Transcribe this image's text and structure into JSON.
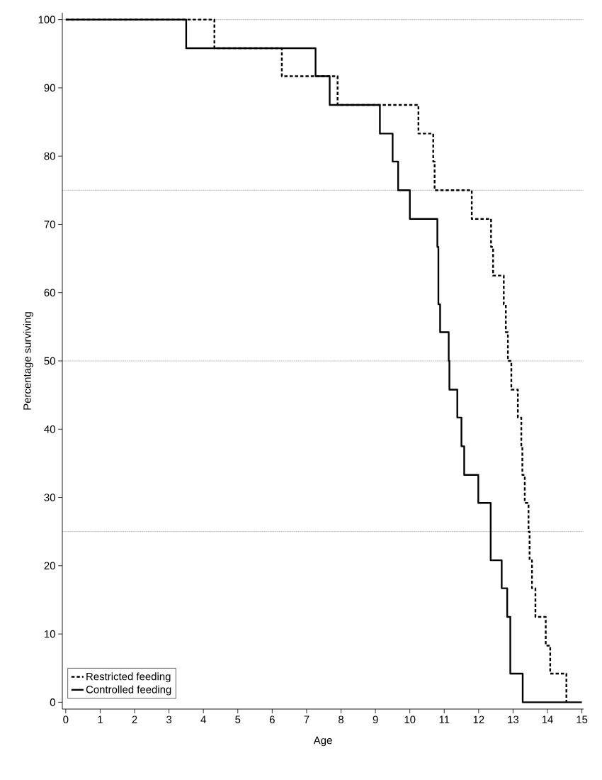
{
  "chart_data": {
    "type": "step",
    "xlabel": "Age",
    "ylabel": "Percentage surviving",
    "xlim": [
      -0.1,
      15.05
    ],
    "ylim": [
      -1,
      101
    ],
    "xticks": [
      0,
      1,
      2,
      3,
      4,
      5,
      6,
      7,
      8,
      9,
      10,
      11,
      12,
      13,
      14,
      15
    ],
    "yticks": [
      0,
      10,
      20,
      30,
      40,
      50,
      60,
      70,
      80,
      90,
      100
    ],
    "legend": "bottom left",
    "ref_lines": [
      {
        "axis": "y",
        "value": 25,
        "color": "#555555",
        "line_style": "dotted"
      },
      {
        "axis": "y",
        "value": 50,
        "color": "#555555",
        "line_style": "dotted"
      },
      {
        "axis": "y",
        "value": 75,
        "color": "#555555",
        "line_style": "dotted"
      },
      {
        "axis": "y",
        "value": 100,
        "color": "#555555",
        "line_style": "dotted"
      }
    ],
    "series": [
      {
        "name": "Restricted feeding",
        "color": "#000000",
        "line_style": "dashed",
        "x": [
          0,
          4.32,
          6.28,
          7.9,
          10.25,
          10.68,
          10.72,
          11.8,
          12.36,
          12.42,
          12.73,
          12.79,
          12.85,
          12.95,
          13.14,
          13.24,
          13.27,
          13.34,
          13.45,
          13.48,
          13.55,
          13.65,
          13.95,
          14.08,
          14.55
        ],
        "values": [
          100,
          95.8,
          91.7,
          87.5,
          83.3,
          79.2,
          75,
          70.8,
          66.7,
          62.5,
          58.3,
          54.2,
          50,
          45.8,
          41.7,
          37.5,
          33.3,
          29.2,
          25,
          20.8,
          16.7,
          12.5,
          8.3,
          4.2,
          0
        ]
      },
      {
        "name": "Controlled feeding",
        "color": "#000000",
        "line_style": "solid",
        "x": [
          0,
          3.5,
          7.26,
          7.67,
          9.13,
          9.5,
          9.66,
          10.0,
          10.8,
          10.83,
          10.88,
          11.13,
          11.15,
          11.38,
          11.5,
          11.58,
          11.99,
          12.35,
          12.67,
          12.83,
          12.92,
          13.28,
          15
        ],
        "values": [
          100,
          95.8,
          91.7,
          87.5,
          83.3,
          79.2,
          75,
          70.8,
          66.7,
          58.3,
          54.2,
          50,
          45.8,
          41.7,
          37.5,
          33.3,
          29.2,
          20.8,
          16.7,
          12.5,
          4.2,
          0,
          0
        ]
      }
    ]
  }
}
